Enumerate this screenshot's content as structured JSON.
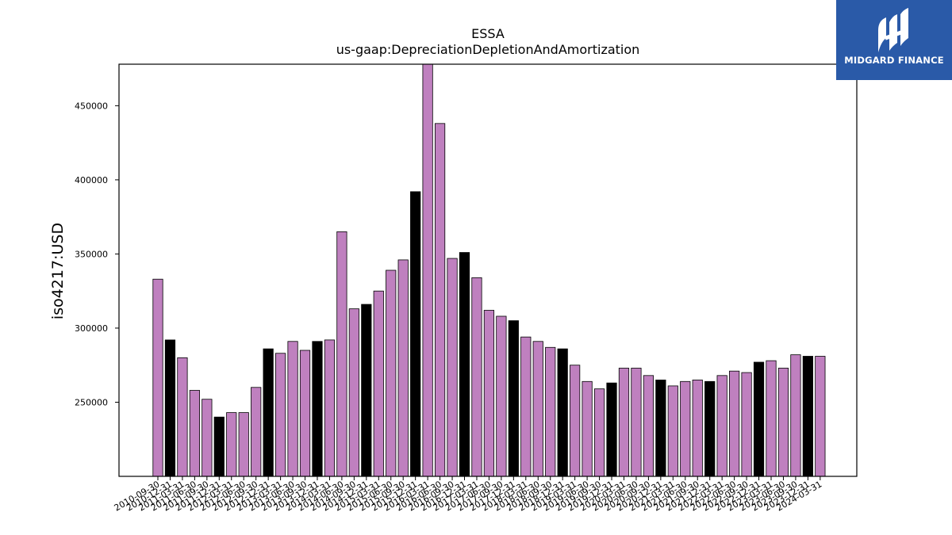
{
  "logo": {
    "text": "MIDGARD FINANCE",
    "background": "#2a5aa8"
  },
  "chart_data": {
    "type": "bar",
    "title": "ESSA",
    "subtitle": "us-gaap:DepreciationDepletionAndAmortization",
    "xlabel": "",
    "ylabel": "iso4217:USD",
    "ylim": [
      200000,
      478000
    ],
    "yticks": [
      250000,
      300000,
      350000,
      400000,
      450000
    ],
    "grid": false,
    "colors": {
      "default": "#bf80bf",
      "highlight": "#000000"
    },
    "categories": [
      "2010-09-30",
      "2010-12-31",
      "2011-03-31",
      "2011-06-30",
      "2011-09-30",
      "2011-12-31",
      "2012-03-31",
      "2012-06-30",
      "2012-09-30",
      "2012-12-31",
      "2013-03-31",
      "2013-06-30",
      "2013-09-30",
      "2013-12-31",
      "2014-03-31",
      "2014-06-30",
      "2014-09-30",
      "2014-12-31",
      "2015-03-31",
      "2015-06-30",
      "2015-09-30",
      "2015-12-31",
      "2016-03-31",
      "2016-06-30",
      "2016-09-30",
      "2016-12-31",
      "2017-03-31",
      "2017-06-30",
      "2017-09-30",
      "2017-12-31",
      "2018-03-31",
      "2018-06-30",
      "2018-09-30",
      "2018-12-31",
      "2019-03-31",
      "2019-06-30",
      "2019-09-30",
      "2019-12-31",
      "2020-03-31",
      "2020-06-30",
      "2020-09-30",
      "2020-12-31",
      "2021-03-31",
      "2021-06-30",
      "2021-09-30",
      "2021-12-31",
      "2022-03-31",
      "2022-06-30",
      "2022-09-30",
      "2022-12-31",
      "2023-03-31",
      "2023-06-30",
      "2023-09-30",
      "2023-12-31",
      "2024-03-31"
    ],
    "values": [
      333000,
      292000,
      280000,
      258000,
      252000,
      240000,
      243000,
      243000,
      260000,
      286000,
      283000,
      291000,
      285000,
      291000,
      292000,
      365000,
      313000,
      316000,
      325000,
      339000,
      346000,
      392000,
      478000,
      438000,
      347000,
      351000,
      334000,
      312000,
      308000,
      305000,
      294000,
      291000,
      287000,
      286000,
      275000,
      264000,
      259000,
      263000,
      273000,
      273000,
      268000,
      265000,
      261000,
      264000,
      265000,
      264000,
      268000,
      271000,
      270000,
      277000,
      278000,
      273000,
      282000,
      281000,
      281000
    ],
    "highlight": [
      false,
      true,
      false,
      false,
      false,
      true,
      false,
      false,
      false,
      true,
      false,
      false,
      false,
      true,
      false,
      false,
      false,
      true,
      false,
      false,
      false,
      true,
      false,
      false,
      false,
      true,
      false,
      false,
      false,
      true,
      false,
      false,
      false,
      true,
      false,
      false,
      false,
      true,
      false,
      false,
      false,
      true,
      false,
      false,
      false,
      true,
      false,
      false,
      false,
      true,
      false,
      false,
      false,
      true,
      false
    ]
  }
}
